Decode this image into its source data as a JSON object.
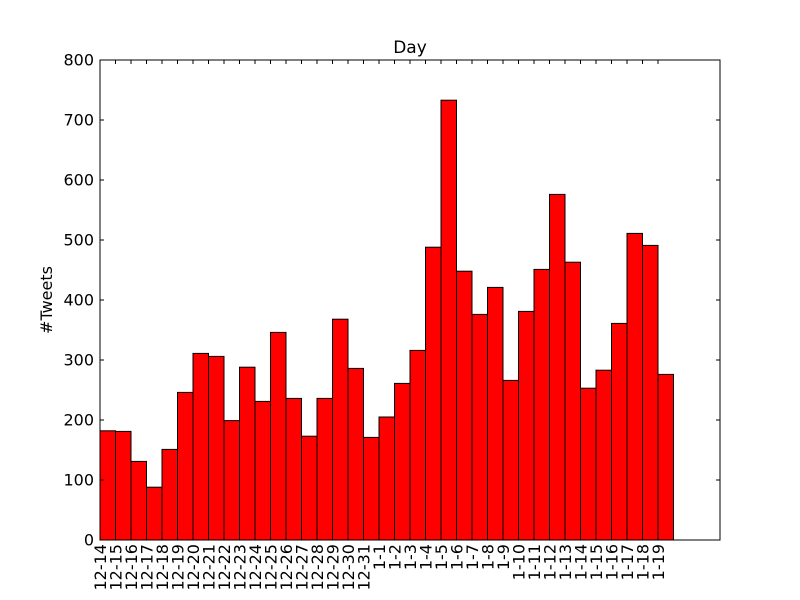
{
  "chart_data": {
    "type": "bar",
    "title": "Day",
    "xlabel": "",
    "ylabel": "#Tweets",
    "ylim": [
      0,
      800
    ],
    "yticks": [
      0,
      100,
      200,
      300,
      400,
      500,
      600,
      700,
      800
    ],
    "grid": false,
    "bar_color": "#ff0000",
    "edge_color": "#000000",
    "categories": [
      "12-14",
      "12-15",
      "12-16",
      "12-17",
      "12-18",
      "12-19",
      "12-20",
      "12-21",
      "12-22",
      "12-23",
      "12-24",
      "12-25",
      "12-26",
      "12-27",
      "12-28",
      "12-29",
      "12-30",
      "12-31",
      "1-1",
      "1-2",
      "1-3",
      "1-4",
      "1-5",
      "1-6",
      "1-7",
      "1-8",
      "1-9",
      "1-10",
      "1-11",
      "1-12",
      "1-13",
      "1-14",
      "1-15",
      "1-16",
      "1-17",
      "1-18",
      "1-19"
    ],
    "values": [
      182,
      181,
      131,
      88,
      151,
      246,
      311,
      306,
      199,
      288,
      231,
      346,
      236,
      173,
      236,
      368,
      286,
      171,
      205,
      261,
      316,
      488,
      733,
      448,
      376,
      421,
      266,
      381,
      451,
      576,
      463,
      253,
      283,
      361,
      511,
      491,
      276
    ]
  }
}
